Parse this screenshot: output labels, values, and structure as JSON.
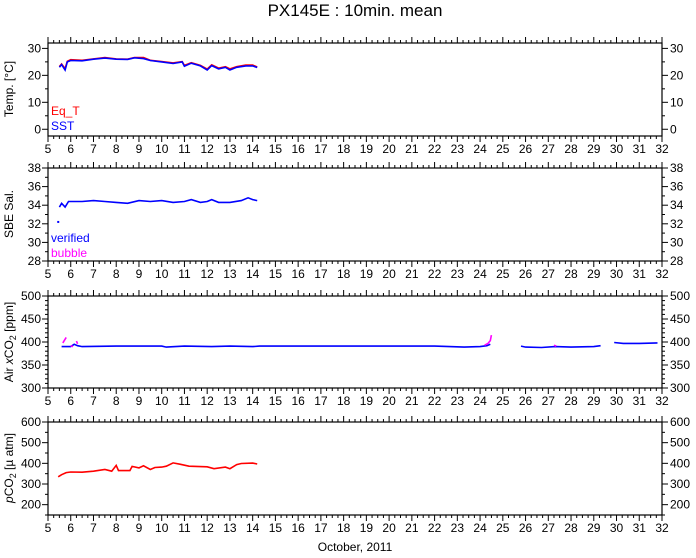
{
  "title": "PX145E : 10min. mean",
  "colors": {
    "red": "#ff0000",
    "blue": "#0000ff",
    "magenta": "#ff00ff"
  },
  "chart_data": [
    {
      "type": "line",
      "ylabel": "Temp. [°C]",
      "xlabel": "",
      "xlim": [
        5,
        32
      ],
      "xticks": [
        5,
        6,
        7,
        8,
        9,
        10,
        11,
        12,
        13,
        14,
        15,
        16,
        17,
        18,
        19,
        20,
        21,
        22,
        23,
        24,
        25,
        26,
        27,
        28,
        29,
        30,
        31,
        32
      ],
      "ylim": [
        -2.5,
        32
      ],
      "yticks": [
        0,
        10,
        20,
        30
      ],
      "yminor": 5,
      "legend": "bottom-left",
      "series": [
        {
          "name": "Eq_T",
          "color": "#ff0000",
          "points": [
            [
              5.5,
              23.3
            ],
            [
              5.6,
              24.2
            ],
            [
              5.75,
              22.5
            ],
            [
              5.85,
              25.2
            ],
            [
              6,
              25.8
            ],
            [
              6.5,
              25.6
            ],
            [
              7,
              26.1
            ],
            [
              7.5,
              26.6
            ],
            [
              8,
              26.1
            ],
            [
              8.5,
              26.0
            ],
            [
              8.8,
              26.6
            ],
            [
              9.2,
              26.6
            ],
            [
              9.5,
              25.6
            ],
            [
              10,
              25.1
            ],
            [
              10.5,
              24.6
            ],
            [
              10.9,
              25.1
            ],
            [
              11,
              23.7
            ],
            [
              11.3,
              24.7
            ],
            [
              11.7,
              23.7
            ],
            [
              12,
              22.3
            ],
            [
              12.2,
              23.9
            ],
            [
              12.5,
              22.7
            ],
            [
              12.8,
              23.2
            ],
            [
              13,
              22.4
            ],
            [
              13.3,
              23.2
            ],
            [
              13.7,
              23.8
            ],
            [
              14,
              23.8
            ],
            [
              14.2,
              23.1
            ]
          ]
        },
        {
          "name": "SST",
          "color": "#0000ff",
          "points": [
            [
              5.5,
              23
            ],
            [
              5.6,
              24
            ],
            [
              5.75,
              22
            ],
            [
              5.85,
              25
            ],
            [
              6,
              25.5
            ],
            [
              6.5,
              25.4
            ],
            [
              7,
              26
            ],
            [
              7.5,
              26.4
            ],
            [
              8,
              26
            ],
            [
              8.5,
              25.9
            ],
            [
              8.8,
              26.5
            ],
            [
              9.2,
              26.2
            ],
            [
              9.5,
              25.5
            ],
            [
              10,
              25
            ],
            [
              10.5,
              24.4
            ],
            [
              10.9,
              25
            ],
            [
              11,
              23.4
            ],
            [
              11.3,
              24.5
            ],
            [
              11.7,
              23.5
            ],
            [
              12,
              22
            ],
            [
              12.2,
              23.6
            ],
            [
              12.5,
              22.4
            ],
            [
              12.8,
              23
            ],
            [
              13,
              22
            ],
            [
              13.3,
              23
            ],
            [
              13.7,
              23.5
            ],
            [
              14,
              23.5
            ],
            [
              14.2,
              22.9
            ]
          ]
        }
      ]
    },
    {
      "type": "line",
      "ylabel": "SBE Sal.",
      "xlabel": "",
      "xlim": [
        5,
        32
      ],
      "xticks": [
        5,
        6,
        7,
        8,
        9,
        10,
        11,
        12,
        13,
        14,
        15,
        16,
        17,
        18,
        19,
        20,
        21,
        22,
        23,
        24,
        25,
        26,
        27,
        28,
        29,
        30,
        31,
        32
      ],
      "ylim": [
        28,
        38
      ],
      "yticks": [
        28,
        30,
        32,
        34,
        36,
        38
      ],
      "yminor": 1,
      "legend": "bottom-left",
      "series": [
        {
          "name": "verified",
          "color": "#0000ff",
          "points": [
            [
              5.5,
              33.8
            ],
            [
              5.6,
              34.2
            ],
            [
              5.75,
              33.8
            ],
            [
              5.9,
              34.4
            ],
            [
              6.5,
              34.4
            ],
            [
              7,
              34.5
            ],
            [
              7.5,
              34.4
            ],
            [
              8,
              34.3
            ],
            [
              8.5,
              34.2
            ],
            [
              9,
              34.5
            ],
            [
              9.5,
              34.4
            ],
            [
              10,
              34.5
            ],
            [
              10.5,
              34.3
            ],
            [
              11,
              34.4
            ],
            [
              11.3,
              34.6
            ],
            [
              11.7,
              34.3
            ],
            [
              12,
              34.4
            ],
            [
              12.2,
              34.6
            ],
            [
              12.5,
              34.3
            ],
            [
              13,
              34.3
            ],
            [
              13.5,
              34.5
            ],
            [
              13.8,
              34.8
            ],
            [
              14,
              34.6
            ],
            [
              14.2,
              34.5
            ]
          ]
        },
        {
          "name": "bubble",
          "color": "#ff00ff",
          "points": []
        }
      ],
      "extra_points": [
        [
          5.45,
          32.2
        ]
      ]
    },
    {
      "type": "line",
      "ylabel_prefix": "Air ",
      "ylabel_var": "x",
      "ylabel_main": "CO",
      "ylabel_sub": "2",
      "ylabel_unit": " [ppm]",
      "xlabel": "",
      "xlim": [
        5,
        32
      ],
      "xticks": [
        5,
        6,
        7,
        8,
        9,
        10,
        11,
        12,
        13,
        14,
        15,
        16,
        17,
        18,
        19,
        20,
        21,
        22,
        23,
        24,
        25,
        26,
        27,
        28,
        29,
        30,
        31,
        32
      ],
      "ylim": [
        300,
        500
      ],
      "yticks": [
        300,
        350,
        400,
        450,
        500
      ],
      "yminor": 10,
      "series": [
        {
          "name": "verified",
          "color": "#0000ff",
          "segments": [
            [
              [
                5.6,
                390
              ],
              [
                6,
                390
              ],
              [
                6.15,
                395
              ],
              [
                6.3,
                392
              ],
              [
                6.5,
                390
              ],
              [
                8,
                391
              ],
              [
                10,
                391
              ],
              [
                10.2,
                389
              ],
              [
                11,
                391
              ],
              [
                12.2,
                390
              ],
              [
                13,
                391
              ],
              [
                14,
                390
              ],
              [
                14.3,
                391
              ],
              [
                18,
                391
              ],
              [
                20,
                391
              ],
              [
                22,
                391
              ],
              [
                23.3,
                389
              ],
              [
                24,
                390
              ],
              [
                24.3,
                392
              ],
              [
                24.45,
                395
              ]
            ],
            [
              [
                25.8,
                391
              ],
              [
                26,
                389
              ],
              [
                26.7,
                388
              ],
              [
                27.3,
                390
              ],
              [
                28,
                389
              ],
              [
                29,
                390
              ],
              [
                29.3,
                392
              ]
            ],
            [
              [
                29.9,
                399
              ],
              [
                30.3,
                397
              ],
              [
                31,
                397
              ],
              [
                31.8,
                398
              ]
            ]
          ]
        },
        {
          "name": "bubble",
          "color": "#ff00ff",
          "segments": [
            [
              [
                5.65,
                398
              ],
              [
                5.8,
                410
              ]
            ],
            [
              [
                6.0,
                392
              ],
              [
                6.1,
                390
              ]
            ],
            [
              [
                6.25,
                402
              ],
              [
                6.3,
                396
              ]
            ],
            [
              [
                24.2,
                393
              ],
              [
                24.35,
                397
              ],
              [
                24.45,
                403
              ],
              [
                24.5,
                415
              ]
            ],
            [
              [
                27.25,
                393
              ],
              [
                27.35,
                391
              ]
            ]
          ]
        }
      ]
    },
    {
      "type": "line",
      "ylabel_var": "p",
      "ylabel_main": "CO",
      "ylabel_sub": "2",
      "ylabel_unit": " [µ atm]",
      "xlabel": "October, 2011",
      "xlim": [
        5,
        32
      ],
      "xticks": [
        5,
        6,
        7,
        8,
        9,
        10,
        11,
        12,
        13,
        14,
        15,
        16,
        17,
        18,
        19,
        20,
        21,
        22,
        23,
        24,
        25,
        26,
        27,
        28,
        29,
        30,
        31,
        32
      ],
      "ylim": [
        150,
        600
      ],
      "yticks": [
        200,
        300,
        400,
        500,
        600
      ],
      "yminor": 50,
      "series": [
        {
          "name": "pCO2",
          "color": "#ff0000",
          "points": [
            [
              5.45,
              335
            ],
            [
              5.6,
              345
            ],
            [
              5.8,
              355
            ],
            [
              6,
              358
            ],
            [
              6.5,
              357
            ],
            [
              7,
              362
            ],
            [
              7.5,
              370
            ],
            [
              7.8,
              362
            ],
            [
              8,
              390
            ],
            [
              8.1,
              365
            ],
            [
              8.6,
              365
            ],
            [
              8.7,
              385
            ],
            [
              9,
              378
            ],
            [
              9.2,
              388
            ],
            [
              9.5,
              370
            ],
            [
              9.7,
              380
            ],
            [
              10,
              382
            ],
            [
              10.2,
              386
            ],
            [
              10.5,
              402
            ],
            [
              10.8,
              396
            ],
            [
              11.2,
              386
            ],
            [
              12,
              383
            ],
            [
              12.3,
              374
            ],
            [
              12.8,
              382
            ],
            [
              13,
              374
            ],
            [
              13.3,
              394
            ],
            [
              13.5,
              399
            ],
            [
              14,
              401
            ],
            [
              14.2,
              397
            ]
          ]
        }
      ]
    }
  ]
}
